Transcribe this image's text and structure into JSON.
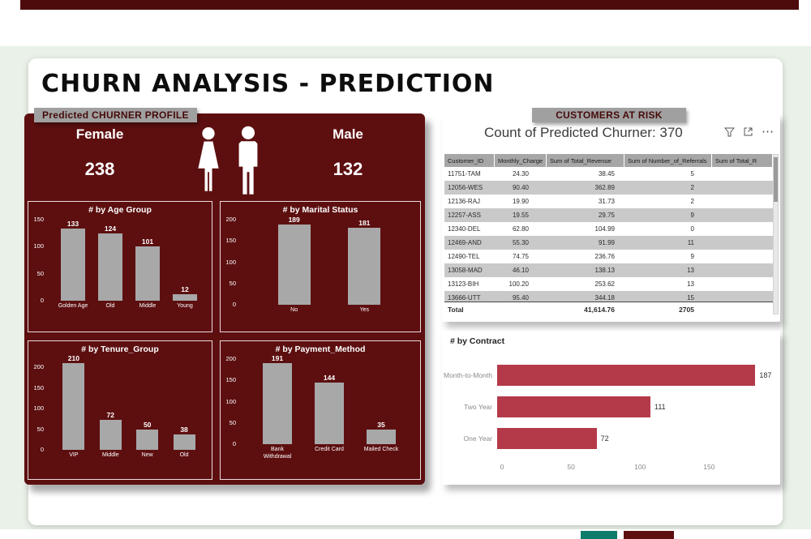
{
  "title": "CHURN ANALYSIS - PREDICTION",
  "left_panel": {
    "badge": "Predicted CHURNER PROFILE",
    "female": {
      "label": "Female",
      "value": "238"
    },
    "male": {
      "label": "Male",
      "value": "132"
    }
  },
  "risk_panel": {
    "badge": "CUSTOMERS AT RISK",
    "table_title": "Count of Predicted Churner: 370",
    "more_glyph": "⋯",
    "table": {
      "columns": [
        "Customer_ID",
        "Monthly_Charge",
        "Sum of Total_Revenue",
        "Sum of Number_of_Referrals",
        "Sum of Total_R"
      ],
      "rows": [
        [
          "11751-TAM",
          "24.30",
          "38.45",
          "5",
          ""
        ],
        [
          "12056-WES",
          "90.40",
          "362.89",
          "2",
          ""
        ],
        [
          "12136-RAJ",
          "19.90",
          "31.73",
          "2",
          ""
        ],
        [
          "12257-ASS",
          "19.55",
          "29.75",
          "9",
          ""
        ],
        [
          "12340-DEL",
          "62.80",
          "104.99",
          "0",
          ""
        ],
        [
          "12469-AND",
          "55.30",
          "91.99",
          "11",
          ""
        ],
        [
          "12490-TEL",
          "74.75",
          "236.76",
          "9",
          ""
        ],
        [
          "13058-MAD",
          "46.10",
          "138.13",
          "13",
          ""
        ],
        [
          "13123-BIH",
          "100.20",
          "253.62",
          "13",
          ""
        ],
        [
          "13666-UTT",
          "95.40",
          "344.18",
          "15",
          ""
        ]
      ],
      "total_row": [
        "Total",
        "",
        "41,614.76",
        "2705",
        ""
      ]
    }
  },
  "chart_data": [
    {
      "id": "age_group",
      "type": "bar",
      "title": "# by Age Group",
      "categories": [
        "Golden Age",
        "Old",
        "Middle",
        "Young"
      ],
      "values": [
        133,
        124,
        101,
        12
      ],
      "yticks": [
        0,
        50,
        100,
        150
      ],
      "ylim": [
        0,
        150
      ]
    },
    {
      "id": "marital_status",
      "type": "bar",
      "title": "# by Marital Status",
      "categories": [
        "No",
        "Yes"
      ],
      "values": [
        189,
        181
      ],
      "yticks": [
        0,
        50,
        100,
        150,
        200
      ],
      "ylim": [
        0,
        200
      ]
    },
    {
      "id": "tenure_group",
      "type": "bar",
      "title": "# by Tenure_Group",
      "categories": [
        "VIP",
        "Middle",
        "New",
        "Old"
      ],
      "values": [
        210,
        72,
        50,
        38
      ],
      "yticks": [
        0,
        50,
        100,
        150,
        200
      ],
      "ylim": [
        0,
        220
      ]
    },
    {
      "id": "payment_method",
      "type": "bar",
      "title": "# by Payment_Method",
      "categories": [
        "Bank Withdrawal",
        "Credit Card",
        "Mailed Check"
      ],
      "values": [
        191,
        144,
        35
      ],
      "yticks": [
        0,
        50,
        100,
        150,
        200
      ],
      "ylim": [
        0,
        200
      ]
    },
    {
      "id": "contract",
      "type": "hbar",
      "title": "# by Contract",
      "categories": [
        "Month-to-Month",
        "Two Year",
        "One Year"
      ],
      "values": [
        187,
        111,
        72
      ],
      "xticks": [
        0,
        50,
        100,
        150
      ],
      "xlim": [
        0,
        195
      ]
    }
  ],
  "colors": {
    "top_bar": "#4d0b0c",
    "panel_bg": "#5d0f10",
    "badge_bg": "#a0a0a0",
    "badge_text": "#460a0a",
    "bar_gray": "#a8a8a8",
    "contract_bar": "#b43a4a",
    "table_header_bg": "#a6a6a6",
    "row_alt": "#c9c9c9",
    "bg_green": "#e9f1e8",
    "tab_teal": "#0e7c6b",
    "tab_maroon": "#5d0f10"
  }
}
